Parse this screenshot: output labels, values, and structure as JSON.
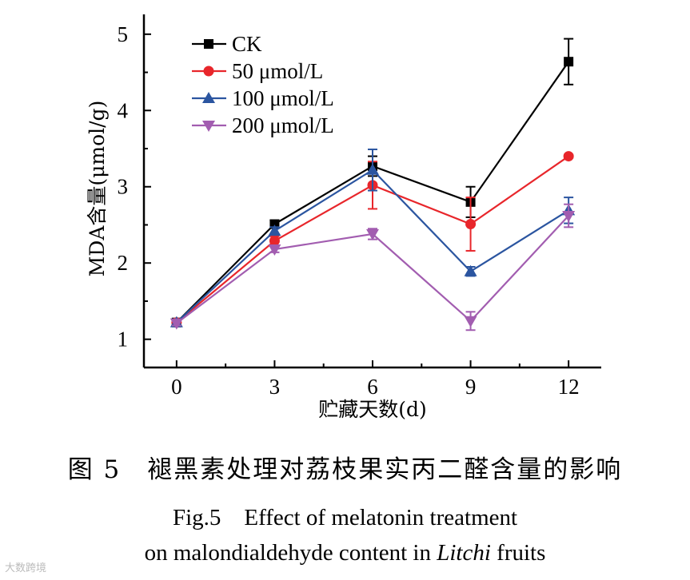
{
  "chart_data": {
    "type": "line",
    "title": "",
    "xlabel": "贮藏天数(d)",
    "ylabel": "MDA含量(μmol/g)",
    "x": [
      0,
      3,
      6,
      9,
      12
    ],
    "xticks": [
      "0",
      "3",
      "6",
      "9",
      "12"
    ],
    "yticks": [
      "1",
      "2",
      "3",
      "4",
      "5"
    ],
    "xlim": [
      -1,
      13
    ],
    "ylim": [
      0.63,
      5.26
    ],
    "legend_position": "top-left",
    "series": [
      {
        "name": "CK",
        "color": "#000000",
        "marker": "square",
        "values": [
          1.22,
          2.51,
          3.27,
          2.8,
          4.64
        ],
        "errors": [
          0.03,
          0.05,
          0.13,
          0.2,
          0.3
        ]
      },
      {
        "name": "50 μmol/L",
        "color": "#e8262b",
        "marker": "circle",
        "values": [
          1.22,
          2.29,
          3.02,
          2.51,
          3.4
        ],
        "errors": [
          0.03,
          0.06,
          0.31,
          0.35,
          0.02
        ]
      },
      {
        "name": "100 μmol/L",
        "color": "#2b55a0",
        "marker": "triangle-up",
        "values": [
          1.22,
          2.42,
          3.22,
          1.89,
          2.69
        ],
        "errors": [
          0.03,
          0.05,
          0.27,
          0.06,
          0.17
        ]
      },
      {
        "name": "200 μmol/L",
        "color": "#a25db0",
        "marker": "triangle-down",
        "values": [
          1.21,
          2.18,
          2.38,
          1.24,
          2.62
        ],
        "errors": [
          0.03,
          0.04,
          0.07,
          0.12,
          0.15
        ]
      }
    ]
  },
  "caption": {
    "cn": "图 5　褪黑素处理对荔枝果实丙二醛含量的影响",
    "en_line1": "Fig.5　Effect of melatonin treatment",
    "en_line2_pre": "on malondialdehyde content in ",
    "en_line2_italic": "Litchi",
    "en_line2_post": " fruits"
  },
  "watermark": "大数跨境"
}
